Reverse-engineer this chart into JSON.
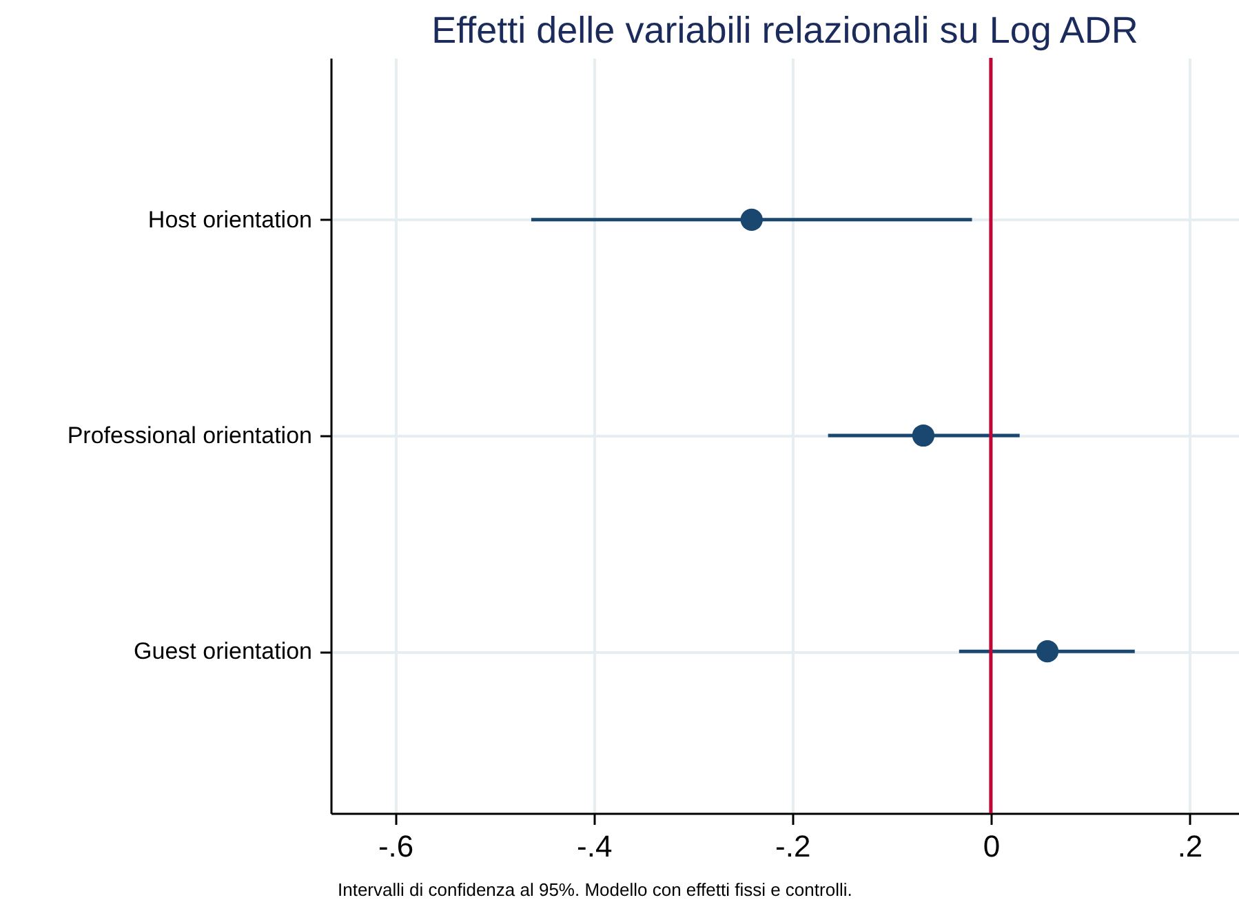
{
  "chart_data": {
    "type": "scatter",
    "orientation": "horizontal",
    "title": "Effetti delle variabili relazionali su Log ADR",
    "categories": [
      "Host orientation",
      "Professional orientation",
      "Guest orientation"
    ],
    "series": [
      {
        "color": "#1a476f",
        "values": [
          -0.241,
          -0.068,
          0.057
        ],
        "errors": [
          [
            -0.463,
            -0.019
          ],
          [
            -0.164,
            0.029
          ],
          [
            -0.032,
            0.145
          ]
        ]
      }
    ],
    "xlim": [
      -0.665,
      0.25
    ],
    "xticks": [
      {
        "value": -0.6,
        "label": "-.6"
      },
      {
        "value": -0.4,
        "label": "-.4"
      },
      {
        "value": -0.2,
        "label": "-.2"
      },
      0,
      {
        "value": 0.2,
        "label": ".2"
      }
    ],
    "ref_lines": [
      {
        "axis": "x",
        "value": 0,
        "color": "#c10534"
      }
    ],
    "grid": true,
    "marker": "circle",
    "legend": false,
    "annotations": [
      "Intervalli di confidenza al 95%. Modello con effetti fissi e controlli."
    ]
  }
}
